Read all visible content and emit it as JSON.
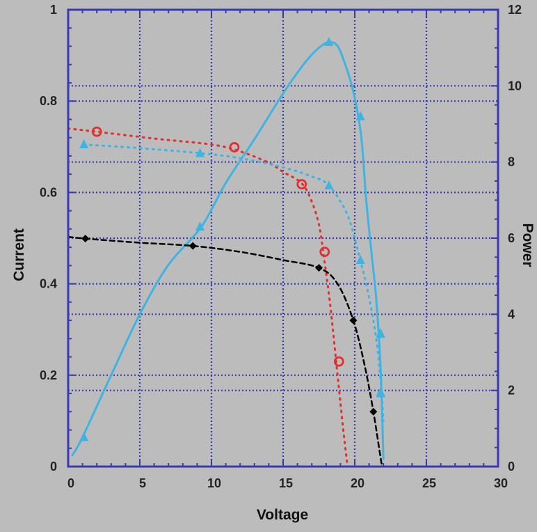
{
  "chart_data": {
    "type": "line",
    "title": "",
    "xlabel": "Voltage",
    "ylabel": "Current",
    "y2label": "Power",
    "xlim": [
      0,
      30
    ],
    "ylim": [
      0,
      1
    ],
    "y2lim": [
      0,
      12
    ],
    "x_ticks": [
      "0",
      "5",
      "10",
      "15",
      "20",
      "25",
      "30"
    ],
    "y_ticks": [
      "0",
      "0.2",
      "0.4",
      "0.6",
      "0.8",
      "1"
    ],
    "y2_ticks": [
      "0",
      "2",
      "4",
      "6",
      "8",
      "10",
      "12"
    ],
    "grid": true,
    "colors": {
      "background": "#bcbcbc",
      "frame": "#3a3ab0",
      "grid": "#3a3ab0",
      "power": "#3fb4e2",
      "current_a": "#e03030",
      "current_b": "#3fb4e2",
      "current_c": "#000000"
    },
    "series": [
      {
        "key": "power",
        "axis": "y2",
        "style": "solid",
        "marker": "triangle",
        "curve": [
          [
            0.3,
            0.3
          ],
          [
            1.0,
            0.77
          ],
          [
            3,
            2.4
          ],
          [
            5,
            4.0
          ],
          [
            7,
            5.3
          ],
          [
            9.3,
            6.3
          ],
          [
            11,
            7.45
          ],
          [
            13,
            8.6
          ],
          [
            15,
            9.8
          ],
          [
            16.5,
            10.6
          ],
          [
            17.5,
            11.0
          ],
          [
            18.2,
            11.15
          ],
          [
            18.8,
            11.05
          ],
          [
            19.3,
            10.6
          ],
          [
            19.8,
            10.0
          ],
          [
            20.2,
            9.3
          ],
          [
            20.5,
            8.5
          ],
          [
            20.8,
            7.0
          ],
          [
            21.2,
            5.5
          ],
          [
            21.5,
            4.4
          ],
          [
            21.8,
            2.6
          ],
          [
            22.0,
            0.2
          ]
        ],
        "markers": [
          [
            1.1,
            0.77
          ],
          [
            9.2,
            6.3
          ],
          [
            18.2,
            11.15
          ],
          [
            20.4,
            9.2
          ],
          [
            21.8,
            3.5
          ],
          [
            21.8,
            1.95
          ]
        ]
      },
      {
        "key": "current_a",
        "axis": "y",
        "style": "dotted",
        "marker": "circle",
        "curve": [
          [
            0,
            0.74
          ],
          [
            2,
            0.733
          ],
          [
            6,
            0.718
          ],
          [
            10,
            0.705
          ],
          [
            12,
            0.69
          ],
          [
            14,
            0.665
          ],
          [
            15,
            0.645
          ],
          [
            16.3,
            0.62
          ],
          [
            17,
            0.58
          ],
          [
            17.5,
            0.53
          ],
          [
            17.8,
            0.47
          ],
          [
            18.3,
            0.35
          ],
          [
            18.8,
            0.2
          ],
          [
            19.2,
            0.08
          ],
          [
            19.5,
            0.0
          ]
        ],
        "markers": [
          [
            2.0,
            0.733
          ],
          [
            11.6,
            0.699
          ],
          [
            16.3,
            0.618
          ],
          [
            17.9,
            0.47
          ],
          [
            18.9,
            0.23
          ]
        ]
      },
      {
        "key": "current_b",
        "axis": "y",
        "style": "dotted",
        "marker": "triangle",
        "curve": [
          [
            1.1,
            0.705
          ],
          [
            5,
            0.697
          ],
          [
            9.2,
            0.686
          ],
          [
            12,
            0.675
          ],
          [
            15,
            0.655
          ],
          [
            17,
            0.635
          ],
          [
            18.2,
            0.615
          ],
          [
            19.5,
            0.55
          ],
          [
            20.4,
            0.45
          ],
          [
            21.0,
            0.37
          ],
          [
            21.5,
            0.28
          ],
          [
            21.8,
            0.19
          ],
          [
            22.0,
            0.1
          ]
        ],
        "markers": [
          [
            1.1,
            0.705
          ],
          [
            9.2,
            0.686
          ],
          [
            18.2,
            0.615
          ],
          [
            20.4,
            0.452
          ],
          [
            21.8,
            0.29
          ],
          [
            21.8,
            0.16
          ]
        ]
      },
      {
        "key": "current_c",
        "axis": "y",
        "style": "dashed",
        "marker": "diamond",
        "curve": [
          [
            0,
            0.503
          ],
          [
            1.2,
            0.499
          ],
          [
            5,
            0.49
          ],
          [
            8.7,
            0.483
          ],
          [
            12,
            0.47
          ],
          [
            15,
            0.452
          ],
          [
            17.5,
            0.435
          ],
          [
            18.8,
            0.4
          ],
          [
            19.9,
            0.32
          ],
          [
            20.7,
            0.22
          ],
          [
            21.3,
            0.12
          ],
          [
            21.7,
            0.04
          ],
          [
            21.9,
            0.0
          ]
        ],
        "markers": [
          [
            1.2,
            0.499
          ],
          [
            8.7,
            0.483
          ],
          [
            17.5,
            0.435
          ],
          [
            19.9,
            0.32
          ],
          [
            21.3,
            0.12
          ]
        ]
      }
    ]
  }
}
